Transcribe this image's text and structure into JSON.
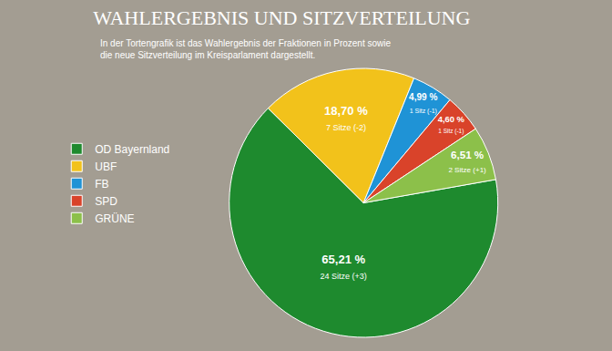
{
  "chart_data": {
    "type": "pie",
    "title": "WAHLERGEBNIS UND SITZVERTEILUNG",
    "subtitle": [
      "In der Tortengrafik ist das Wahlergebnis der Fraktionen in Prozent sowie",
      "die neue Sitzverteilung im Kreisparlament dargestellt."
    ],
    "categories": [
      "OD Bayernland",
      "UBF",
      "FB",
      "SPD",
      "GRÜNE"
    ],
    "values": [
      65.21,
      18.7,
      4.99,
      4.6,
      6.51
    ],
    "value_labels": [
      "65,21 %",
      "18,70 %",
      "4,99 %",
      "4,60 %",
      "6,51 %"
    ],
    "seat_labels": [
      "24 Sitze (+3)",
      "7 Sitze (-2)",
      "1 Sitz (-1)",
      "1 Sitz (-1)",
      "2 Sitze (+1)"
    ],
    "colors": [
      "#1e8a2e",
      "#f2c21b",
      "#1f93d6",
      "#d9432a",
      "#8cc04a"
    ],
    "data_labels": true,
    "legend": "left"
  }
}
